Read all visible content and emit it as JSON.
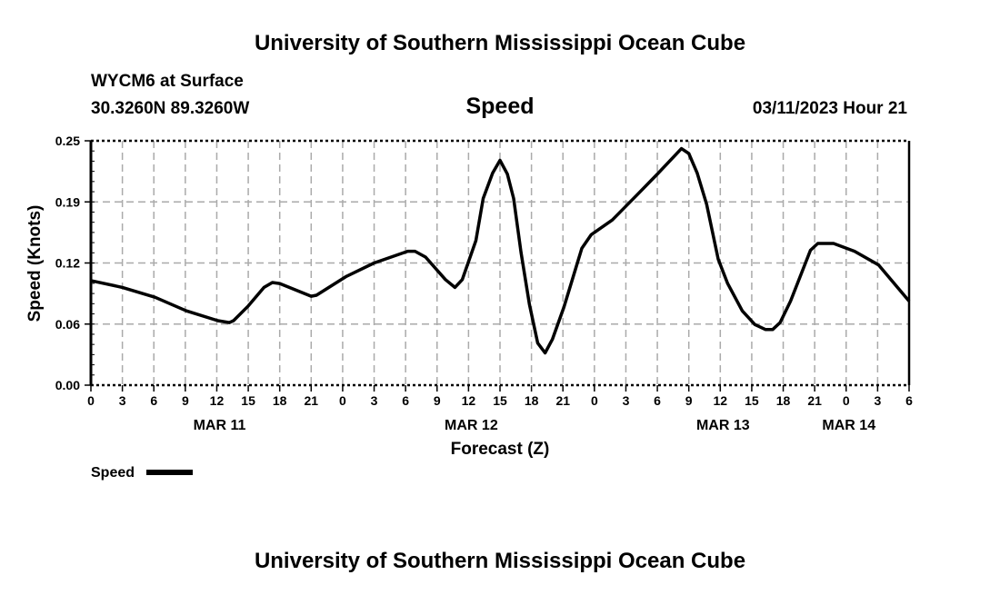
{
  "header": {
    "title": "University of Southern Mississippi Ocean Cube",
    "station": "WYCM6 at Surface",
    "location": "30.3260N  89.3260W",
    "variable": "Speed",
    "datetime": "03/11/2023 Hour 21"
  },
  "footer": {
    "title": "University of Southern Mississippi Ocean Cube"
  },
  "chart_data": {
    "type": "line",
    "title": "Speed",
    "xlabel": "Forecast (Z)",
    "ylabel": "Speed (Knots)",
    "ylim": [
      0,
      0.25
    ],
    "xlim_hours": [
      0,
      78
    ],
    "grid": true,
    "y_ticks": [
      {
        "v": 0,
        "label": "0.00"
      },
      {
        "v": 0.0625,
        "label": "0.06"
      },
      {
        "v": 0.125,
        "label": "0.12"
      },
      {
        "v": 0.1875,
        "label": "0.19"
      },
      {
        "v": 0.25,
        "label": "0.25"
      }
    ],
    "x_tick_labels": [
      "0",
      "3",
      "6",
      "9",
      "12",
      "15",
      "18",
      "21",
      "0",
      "3",
      "6",
      "9",
      "12",
      "15",
      "18",
      "21",
      "0",
      "3",
      "6",
      "9",
      "12",
      "15",
      "18",
      "21",
      "0",
      "3",
      "6"
    ],
    "date_labels": [
      {
        "hour": 12,
        "label": "MAR 11"
      },
      {
        "hour": 36,
        "label": "MAR 12"
      },
      {
        "hour": 60,
        "label": "MAR 13"
      },
      {
        "hour": 72,
        "label": "MAR 14"
      }
    ],
    "legend": {
      "label": "Speed",
      "placement": "bottom-left"
    },
    "series": [
      {
        "name": "Speed",
        "color": "#000000",
        "x": [
          0,
          3,
          6.1,
          9.1,
          12.1,
          13.2,
          13.6,
          15,
          16.5,
          17.3,
          18,
          21,
          21.5,
          24.3,
          27,
          30.2,
          30.9,
          31.9,
          33.8,
          34.7,
          35.4,
          36.7,
          37.4,
          38.3,
          39,
          39.7,
          40.3,
          41,
          41.8,
          42.6,
          43.3,
          44,
          45.1,
          46.8,
          47.7,
          49.7,
          52,
          54,
          56.3,
          57,
          57.8,
          58.7,
          59.8,
          60.7,
          62.1,
          63.3,
          64.3,
          65,
          65.7,
          66.7,
          68.6,
          69.3,
          70.8,
          72.8,
          75.1,
          78
        ],
        "y": [
          0.107,
          0.1,
          0.09,
          0.076,
          0.066,
          0.064,
          0.066,
          0.081,
          0.1,
          0.105,
          0.104,
          0.091,
          0.092,
          0.111,
          0.125,
          0.137,
          0.137,
          0.131,
          0.108,
          0.1,
          0.108,
          0.148,
          0.191,
          0.217,
          0.23,
          0.216,
          0.191,
          0.136,
          0.083,
          0.043,
          0.033,
          0.047,
          0.08,
          0.14,
          0.154,
          0.169,
          0.194,
          0.216,
          0.242,
          0.237,
          0.217,
          0.185,
          0.129,
          0.104,
          0.076,
          0.062,
          0.057,
          0.057,
          0.064,
          0.086,
          0.138,
          0.145,
          0.145,
          0.137,
          0.123,
          0.086
        ]
      }
    ]
  }
}
